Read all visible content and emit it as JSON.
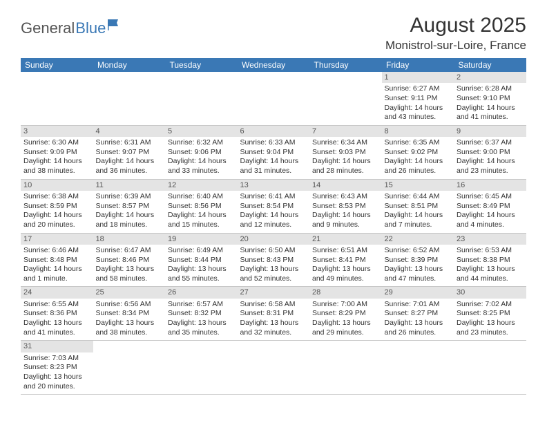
{
  "logo": {
    "part1": "General",
    "part2": "Blue"
  },
  "title": "August 2025",
  "location": "Monistrol-sur-Loire, France",
  "colors": {
    "header_bg": "#3a78b5",
    "header_text": "#ffffff",
    "daynum_bg": "#e4e4e4",
    "border": "#c8c8c8",
    "text": "#333333",
    "logo_gray": "#555555",
    "logo_blue": "#3a78b5",
    "page_bg": "#ffffff"
  },
  "typography": {
    "title_fontsize": 30,
    "location_fontsize": 17,
    "header_fontsize": 12,
    "cell_fontsize": 10.5,
    "logo_fontsize": 22
  },
  "weekdays": [
    "Sunday",
    "Monday",
    "Tuesday",
    "Wednesday",
    "Thursday",
    "Friday",
    "Saturday"
  ],
  "days": [
    {
      "n": 1,
      "sunrise": "6:27 AM",
      "sunset": "9:11 PM",
      "daylight": "14 hours and 43 minutes."
    },
    {
      "n": 2,
      "sunrise": "6:28 AM",
      "sunset": "9:10 PM",
      "daylight": "14 hours and 41 minutes."
    },
    {
      "n": 3,
      "sunrise": "6:30 AM",
      "sunset": "9:09 PM",
      "daylight": "14 hours and 38 minutes."
    },
    {
      "n": 4,
      "sunrise": "6:31 AM",
      "sunset": "9:07 PM",
      "daylight": "14 hours and 36 minutes."
    },
    {
      "n": 5,
      "sunrise": "6:32 AM",
      "sunset": "9:06 PM",
      "daylight": "14 hours and 33 minutes."
    },
    {
      "n": 6,
      "sunrise": "6:33 AM",
      "sunset": "9:04 PM",
      "daylight": "14 hours and 31 minutes."
    },
    {
      "n": 7,
      "sunrise": "6:34 AM",
      "sunset": "9:03 PM",
      "daylight": "14 hours and 28 minutes."
    },
    {
      "n": 8,
      "sunrise": "6:35 AM",
      "sunset": "9:02 PM",
      "daylight": "14 hours and 26 minutes."
    },
    {
      "n": 9,
      "sunrise": "6:37 AM",
      "sunset": "9:00 PM",
      "daylight": "14 hours and 23 minutes."
    },
    {
      "n": 10,
      "sunrise": "6:38 AM",
      "sunset": "8:59 PM",
      "daylight": "14 hours and 20 minutes."
    },
    {
      "n": 11,
      "sunrise": "6:39 AM",
      "sunset": "8:57 PM",
      "daylight": "14 hours and 18 minutes."
    },
    {
      "n": 12,
      "sunrise": "6:40 AM",
      "sunset": "8:56 PM",
      "daylight": "14 hours and 15 minutes."
    },
    {
      "n": 13,
      "sunrise": "6:41 AM",
      "sunset": "8:54 PM",
      "daylight": "14 hours and 12 minutes."
    },
    {
      "n": 14,
      "sunrise": "6:43 AM",
      "sunset": "8:53 PM",
      "daylight": "14 hours and 9 minutes."
    },
    {
      "n": 15,
      "sunrise": "6:44 AM",
      "sunset": "8:51 PM",
      "daylight": "14 hours and 7 minutes."
    },
    {
      "n": 16,
      "sunrise": "6:45 AM",
      "sunset": "8:49 PM",
      "daylight": "14 hours and 4 minutes."
    },
    {
      "n": 17,
      "sunrise": "6:46 AM",
      "sunset": "8:48 PM",
      "daylight": "14 hours and 1 minute."
    },
    {
      "n": 18,
      "sunrise": "6:47 AM",
      "sunset": "8:46 PM",
      "daylight": "13 hours and 58 minutes."
    },
    {
      "n": 19,
      "sunrise": "6:49 AM",
      "sunset": "8:44 PM",
      "daylight": "13 hours and 55 minutes."
    },
    {
      "n": 20,
      "sunrise": "6:50 AM",
      "sunset": "8:43 PM",
      "daylight": "13 hours and 52 minutes."
    },
    {
      "n": 21,
      "sunrise": "6:51 AM",
      "sunset": "8:41 PM",
      "daylight": "13 hours and 49 minutes."
    },
    {
      "n": 22,
      "sunrise": "6:52 AM",
      "sunset": "8:39 PM",
      "daylight": "13 hours and 47 minutes."
    },
    {
      "n": 23,
      "sunrise": "6:53 AM",
      "sunset": "8:38 PM",
      "daylight": "13 hours and 44 minutes."
    },
    {
      "n": 24,
      "sunrise": "6:55 AM",
      "sunset": "8:36 PM",
      "daylight": "13 hours and 41 minutes."
    },
    {
      "n": 25,
      "sunrise": "6:56 AM",
      "sunset": "8:34 PM",
      "daylight": "13 hours and 38 minutes."
    },
    {
      "n": 26,
      "sunrise": "6:57 AM",
      "sunset": "8:32 PM",
      "daylight": "13 hours and 35 minutes."
    },
    {
      "n": 27,
      "sunrise": "6:58 AM",
      "sunset": "8:31 PM",
      "daylight": "13 hours and 32 minutes."
    },
    {
      "n": 28,
      "sunrise": "7:00 AM",
      "sunset": "8:29 PM",
      "daylight": "13 hours and 29 minutes."
    },
    {
      "n": 29,
      "sunrise": "7:01 AM",
      "sunset": "8:27 PM",
      "daylight": "13 hours and 26 minutes."
    },
    {
      "n": 30,
      "sunrise": "7:02 AM",
      "sunset": "8:25 PM",
      "daylight": "13 hours and 23 minutes."
    },
    {
      "n": 31,
      "sunrise": "7:03 AM",
      "sunset": "8:23 PM",
      "daylight": "13 hours and 20 minutes."
    }
  ],
  "layout": {
    "first_weekday_index": 5,
    "cols": 7,
    "rows": 6
  },
  "labels": {
    "sunrise": "Sunrise:",
    "sunset": "Sunset:",
    "daylight": "Daylight:"
  }
}
